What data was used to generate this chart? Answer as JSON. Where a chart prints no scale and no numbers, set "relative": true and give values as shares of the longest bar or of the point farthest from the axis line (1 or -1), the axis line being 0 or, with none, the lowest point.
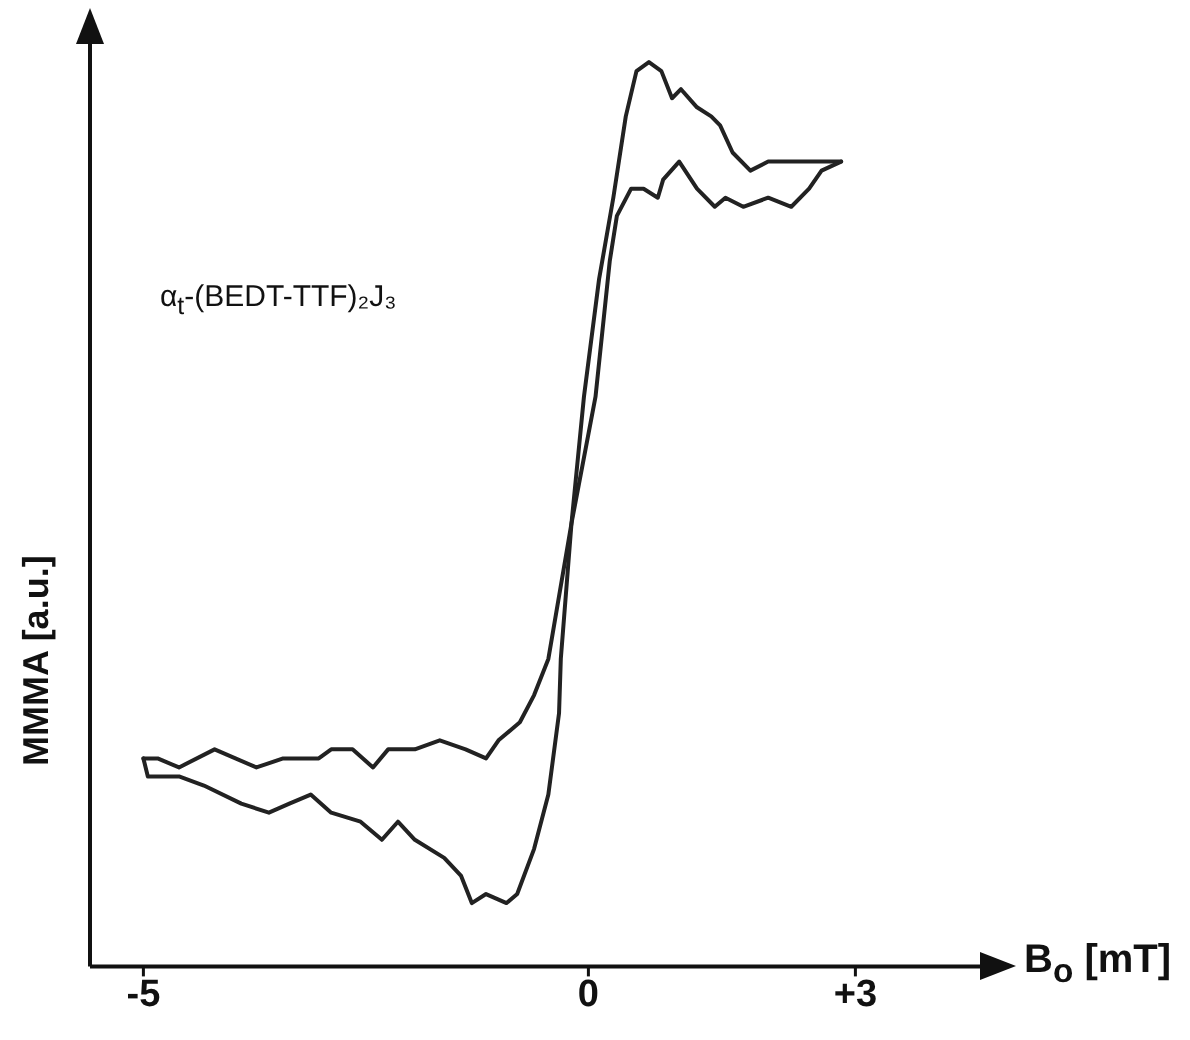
{
  "chart_data": {
    "type": "line",
    "relative": true,
    "xlabel": "B$_{o}$ [mT]",
    "ylabel": "MMMA [a.u.]",
    "annotations": [
      "α$_{t}$-(BEDT-TTF)₂J₃"
    ],
    "xlim": [
      -5.6,
      4.4
    ],
    "xticks": [
      -5,
      0,
      {
        "value": 3,
        "label": "+3"
      }
    ],
    "grid": false,
    "legend": false,
    "marker": "none",
    "line_style": "solid",
    "series": [
      {
        "color": "#222222",
        "x": [
          -5.0,
          -4.95,
          -4.6,
          -4.32,
          -3.9,
          -3.59,
          -3.36,
          -3.12,
          -2.89,
          -2.56,
          -2.32,
          -2.14,
          -1.95,
          -1.62,
          -1.43,
          -1.31,
          -1.15,
          -0.92,
          -0.8,
          -0.61,
          -0.45,
          -0.33,
          -0.31,
          -0.19,
          -0.05,
          0.12,
          0.28,
          0.42,
          0.54,
          0.68,
          0.82,
          0.94,
          1.04,
          1.22,
          1.38,
          1.48,
          1.62,
          1.82,
          2.02,
          2.28,
          2.48,
          2.68,
          2.84
        ],
        "values": [
          0.23,
          0.21,
          0.21,
          0.2,
          0.18,
          0.17,
          0.18,
          0.19,
          0.17,
          0.16,
          0.14,
          0.16,
          0.14,
          0.12,
          0.1,
          0.07,
          0.08,
          0.07,
          0.08,
          0.13,
          0.19,
          0.28,
          0.34,
          0.49,
          0.63,
          0.76,
          0.85,
          0.94,
          0.99,
          1,
          0.99,
          0.96,
          0.97,
          0.95,
          0.94,
          0.93,
          0.9,
          0.88,
          0.89,
          0.89,
          0.89,
          0.89,
          0.89
        ]
      },
      {
        "color": "#222222",
        "x": [
          -5.0,
          -4.84,
          -4.6,
          -4.2,
          -3.73,
          -3.43,
          -3.03,
          -2.89,
          -2.65,
          -2.42,
          -2.25,
          -1.95,
          -1.67,
          -1.38,
          -1.15,
          -1.01,
          -0.77,
          -0.61,
          -0.45,
          -0.19,
          0.08,
          0.24,
          0.32,
          0.48,
          0.62,
          0.78,
          0.84,
          1.02,
          1.22,
          1.42,
          1.54,
          1.74,
          2.02,
          2.28,
          2.48,
          2.62,
          2.84
        ],
        "values": [
          0.23,
          0.23,
          0.22,
          0.24,
          0.22,
          0.23,
          0.23,
          0.24,
          0.24,
          0.22,
          0.24,
          0.24,
          0.25,
          0.24,
          0.23,
          0.25,
          0.27,
          0.3,
          0.34,
          0.49,
          0.63,
          0.78,
          0.83,
          0.86,
          0.86,
          0.85,
          0.87,
          0.89,
          0.86,
          0.84,
          0.85,
          0.84,
          0.85,
          0.84,
          0.86,
          0.88,
          0.89
        ]
      }
    ]
  }
}
